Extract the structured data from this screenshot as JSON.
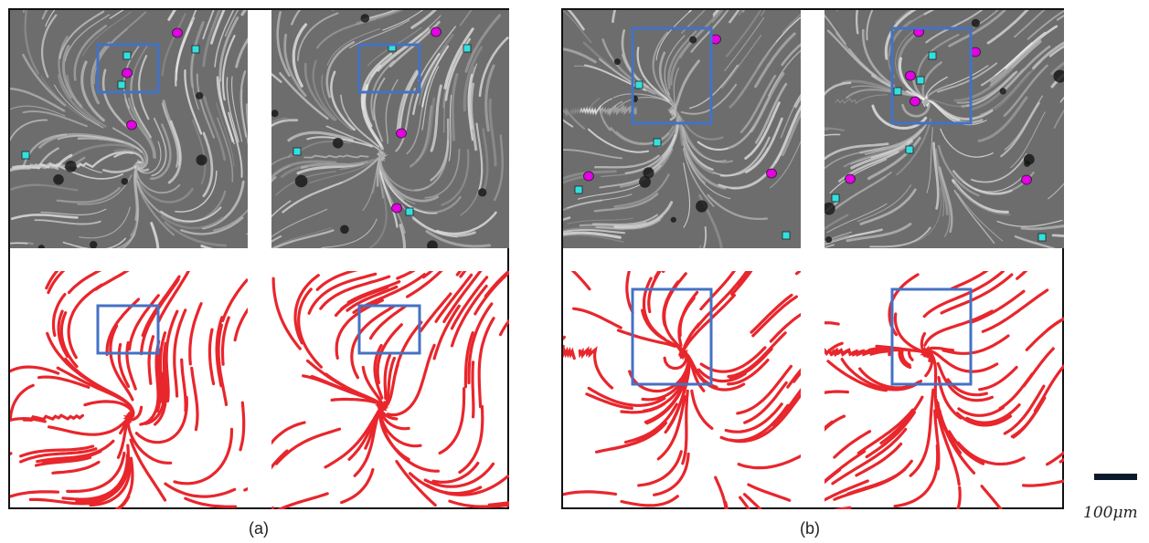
{
  "figure": {
    "panel_a_caption": "(a)",
    "panel_b_caption": "(b)",
    "scale_bar_label": "100μm",
    "colors": {
      "frame": "#111111",
      "roi_box": "#4472c4",
      "stripe": "#e8262c",
      "defect_plus": "#e600e6",
      "defect_minus": "#33e0e0"
    },
    "legend_icons": [
      "circle-marker-icon",
      "square-marker-icon",
      "roi-box-icon"
    ]
  }
}
